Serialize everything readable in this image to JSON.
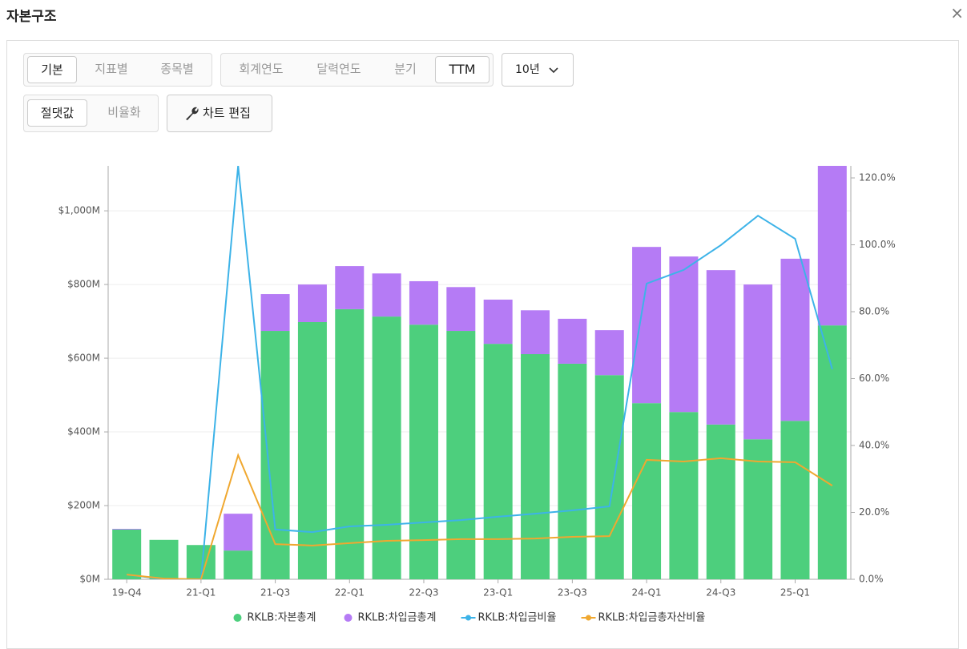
{
  "ui": {
    "title": "자본구조",
    "close": "×",
    "view_tabs": [
      "기본",
      "지표별",
      "종목별"
    ],
    "period_tabs": [
      "회계연도",
      "달력연도",
      "분기",
      "TTM"
    ],
    "range": "10년",
    "scale_tabs": [
      "절댓값",
      "비율화"
    ],
    "edit": "차트 편집"
  },
  "chart_data": {
    "type": "bar",
    "stacked": true,
    "categories": [
      "19-Q4",
      null,
      "21-Q1",
      null,
      "21-Q3",
      null,
      "22-Q1",
      null,
      "22-Q3",
      null,
      "23-Q1",
      null,
      "23-Q3",
      null,
      "24-Q1",
      null,
      "24-Q3",
      null,
      "25-Q1",
      null
    ],
    "series": [
      {
        "name": "RKLB:자본총계",
        "type": "bar",
        "color": "#4dcf7d",
        "values": [
          135,
          107,
          93,
          78,
          674,
          698,
          733,
          713,
          691,
          674,
          639,
          611,
          585,
          554,
          478,
          454,
          420,
          380,
          430,
          689
        ]
      },
      {
        "name": "RKLB:차입금총계",
        "type": "bar",
        "color": "#b57bf5",
        "values": [
          2,
          0,
          0,
          100,
          100,
          102,
          117,
          117,
          118,
          119,
          120,
          119,
          122,
          122,
          424,
          422,
          419,
          420,
          440,
          433
        ]
      },
      {
        "name": "RKLB:차입금비율",
        "type": "line",
        "axis": "y2",
        "color": "#3db3e8",
        "values": [
          1.4,
          0,
          0,
          123.6,
          14.9,
          14.1,
          15.8,
          16.3,
          17.0,
          17.7,
          18.7,
          19.6,
          20.6,
          21.8,
          88.4,
          92.5,
          99.9,
          108.7,
          101.8,
          62.8
        ]
      },
      {
        "name": "RKLB:차입금총자산비율",
        "type": "line",
        "axis": "y2",
        "color": "#f0a830",
        "values": [
          1.4,
          0.2,
          0,
          37.1,
          10.5,
          10.1,
          10.8,
          11.5,
          11.7,
          12.0,
          12.0,
          12.2,
          12.7,
          12.9,
          35.7,
          35.2,
          36.2,
          35.2,
          35.0,
          28.0
        ]
      }
    ],
    "ylim": [
      0,
      1122
    ],
    "yticks": [
      {
        "value": 0,
        "label": "$0M"
      },
      {
        "value": 200,
        "label": "$200M"
      },
      {
        "value": 400,
        "label": "$400M"
      },
      {
        "value": 600,
        "label": "$600M"
      },
      {
        "value": 800,
        "label": "$800M"
      },
      {
        "value": 1000,
        "label": "$1,000M"
      }
    ],
    "y2lim": [
      0,
      123.6
    ],
    "y2ticks": [
      {
        "value": 0,
        "label": "0.0%"
      },
      {
        "value": 20,
        "label": "20.0%"
      },
      {
        "value": 40,
        "label": "40.0%"
      },
      {
        "value": 60,
        "label": "60.0%"
      },
      {
        "value": 80,
        "label": "80.0%"
      },
      {
        "value": 100,
        "label": "100.0%"
      },
      {
        "value": 120,
        "label": "120.0%"
      }
    ],
    "grid": true,
    "legend": "bottom"
  }
}
